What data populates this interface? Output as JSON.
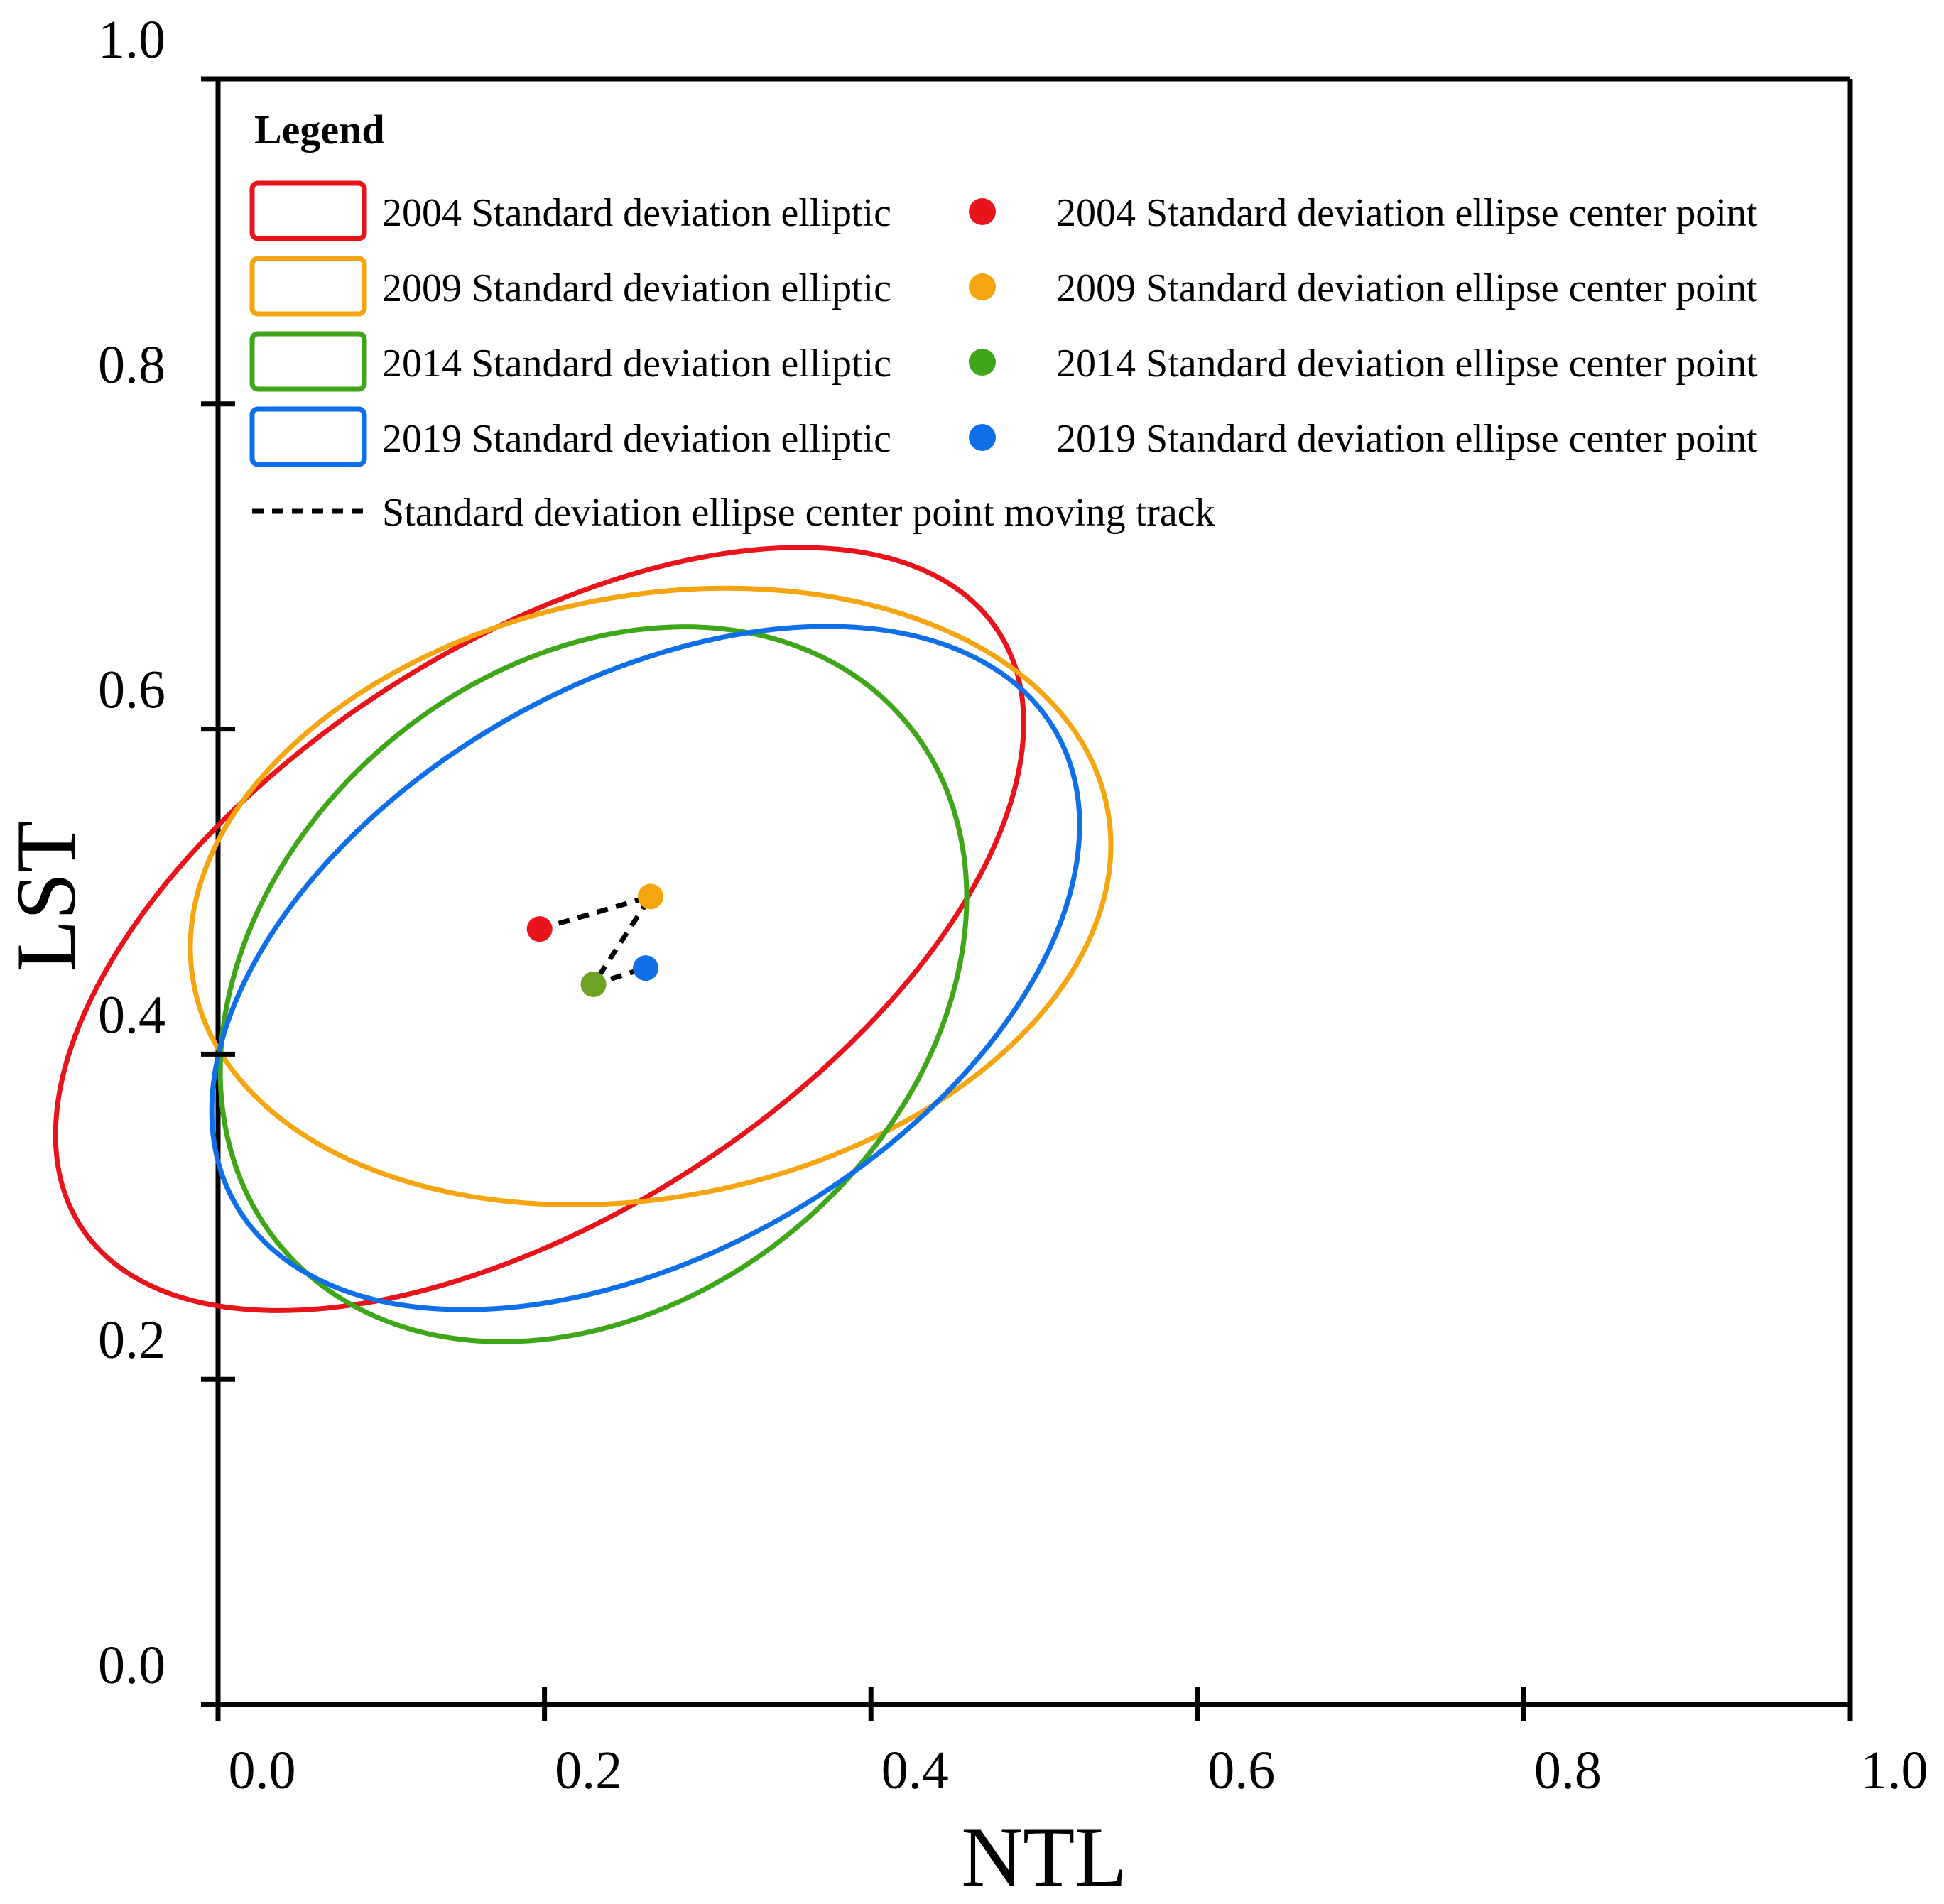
{
  "chart_data": {
    "type": "scatter",
    "title": "",
    "xlabel": "NTL",
    "ylabel": "LST",
    "xlim": [
      0.0,
      1.0
    ],
    "ylim": [
      0.0,
      1.0
    ],
    "x_ticks": [
      "0.0",
      "0.2",
      "0.4",
      "0.6",
      "0.8",
      "1.0"
    ],
    "y_ticks": [
      "0.0",
      "0.2",
      "0.4",
      "0.6",
      "0.8",
      "1.0"
    ],
    "grid": false,
    "legend_title": "Legend",
    "legend_position": "top-left",
    "series": [
      {
        "name": "2004 Standard deviation elliptic",
        "point_name": "2004 Standard deviation ellipse center point",
        "year": "2004",
        "color": "#e8131b",
        "center": [
          0.197,
          0.477
        ],
        "ellipse": {
          "semi_major": 0.335,
          "semi_minor": 0.175,
          "rotation_deg": 33
        }
      },
      {
        "name": "2009 Standard deviation elliptic",
        "point_name": "2009 Standard deviation ellipse center point",
        "year": "2009",
        "color": "#f5a50f",
        "center": [
          0.265,
          0.497
        ],
        "ellipse": {
          "semi_major": 0.285,
          "semi_minor": 0.185,
          "rotation_deg": 11
        }
      },
      {
        "name": "2014 Standard deviation elliptic",
        "point_name": "2014 Standard deviation ellipse center point",
        "year": "2014",
        "color": "#3fa61a",
        "center": [
          0.23,
          0.443
        ],
        "ellipse": {
          "semi_major": 0.25,
          "semi_minor": 0.195,
          "rotation_deg": 40
        }
      },
      {
        "name": "2019 Standard deviation elliptic",
        "point_name": "2019 Standard deviation ellipse center point",
        "year": "2019",
        "color": "#0e6fe8",
        "center": [
          0.262,
          0.453
        ],
        "ellipse": {
          "semi_major": 0.29,
          "semi_minor": 0.175,
          "rotation_deg": 30
        }
      }
    ],
    "track": {
      "name": "Standard deviation ellipse center point moving track",
      "style": "dashed",
      "color": "#000000",
      "order": [
        "2004",
        "2009",
        "2014",
        "2019"
      ]
    }
  }
}
